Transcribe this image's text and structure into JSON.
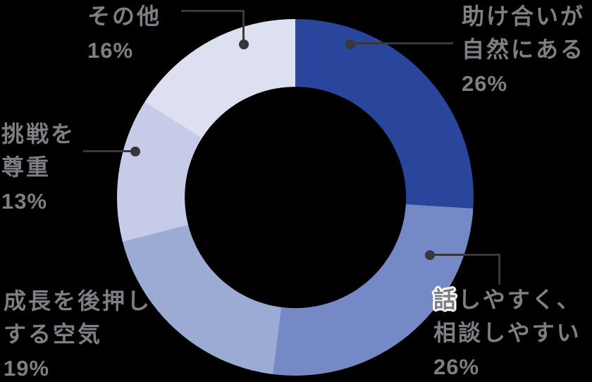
{
  "background_color": "#000000",
  "text_color": "#7e7e85",
  "leader_color": "#38383c",
  "halo_color": "#ffffff",
  "chart_data": {
    "type": "pie",
    "subtype": "donut",
    "title": "",
    "categories": [
      "助け合いが自然にある",
      "話しやすく、相談しやすい",
      "成長を後押しする空気",
      "挑戦を尊重",
      "その他"
    ],
    "values": [
      26,
      26,
      19,
      13,
      16
    ],
    "unit": "%",
    "colors": [
      "#2a459c",
      "#7589c6",
      "#9cabd4",
      "#c6cce7",
      "#dce0f0"
    ],
    "start_angle_deg": 0,
    "direction": "clockwise",
    "inner_radius_ratio": 0.62,
    "legend": "none",
    "label_style": "external-with-leader-lines"
  },
  "labels": {
    "help": {
      "name": "助け合いが\n自然にある",
      "pct": "26%"
    },
    "talk": {
      "name_first": "話",
      "name_rest": "しやすく、\n相談しやすい",
      "pct": "26%"
    },
    "growth": {
      "name": "成長を後押し\nする空気",
      "pct": "19%"
    },
    "challenge": {
      "name": "挑戦を\n尊重",
      "pct": "13%"
    },
    "other": {
      "name": "その他",
      "pct": "16%"
    }
  }
}
